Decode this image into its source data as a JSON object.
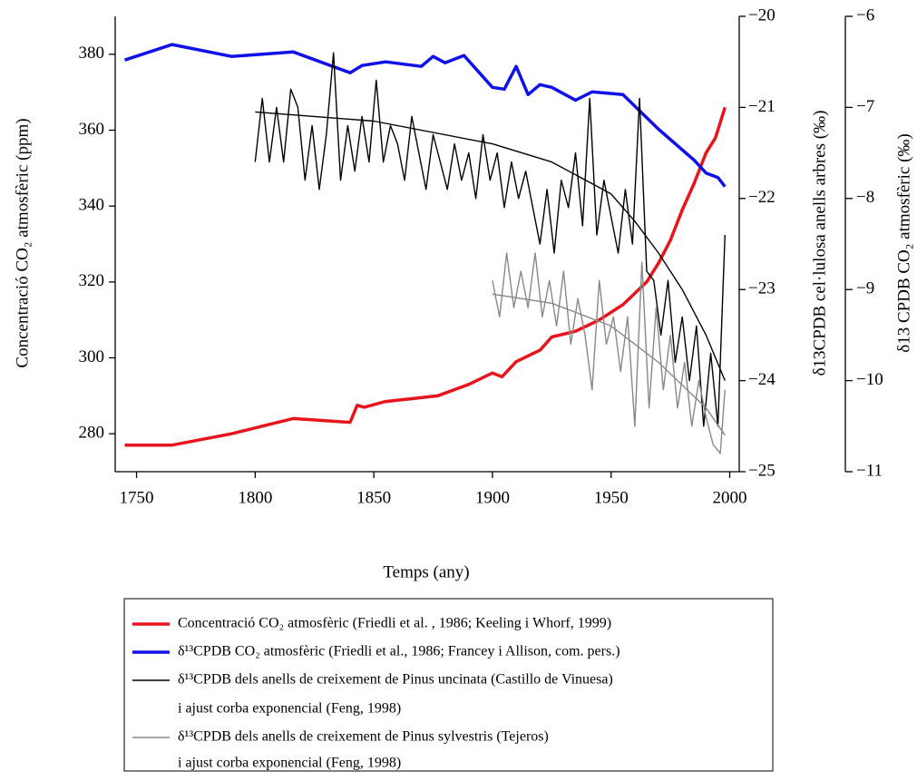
{
  "chart_data": {
    "type": "line",
    "xlabel": "Temps (any)",
    "ylabel": "Concentració CO₂  atmosfèric (ppm)",
    "y2label": "δ13CPDB cel·lulosa anells arbres (‰)",
    "y3label": "δ13 CPDB CO₂ atmosfèric (‰)",
    "xlim": [
      1741,
      2004
    ],
    "xticks": [
      1750,
      1800,
      1850,
      1900,
      1950,
      2000
    ],
    "ylim": [
      270,
      390
    ],
    "yticks": [
      280,
      300,
      320,
      340,
      360,
      380
    ],
    "y2lim": [
      -25,
      -20
    ],
    "y2ticks": [
      {
        "value": -25,
        "label": "−25"
      },
      {
        "value": -24,
        "label": "−24"
      },
      {
        "value": -23,
        "label": "−23"
      },
      {
        "value": -22,
        "label": "−22"
      },
      {
        "value": -21,
        "label": "−21"
      },
      {
        "value": -20,
        "label": "−20"
      }
    ],
    "y3lim": [
      -11,
      -6
    ],
    "y3ticks": [
      {
        "value": -11,
        "label": "−11"
      },
      {
        "value": -10,
        "label": "−10"
      },
      {
        "value": -9,
        "label": "−9"
      },
      {
        "value": -8,
        "label": "−8"
      },
      {
        "value": -7,
        "label": "−7"
      },
      {
        "value": -6,
        "label": "−6"
      }
    ],
    "legend": "bottom",
    "series": [
      {
        "name": "Concentració CO₂ atmosfèric (Friedli et al. , 1986; Keeling i Whorf, 1999)",
        "color": "#e8141b",
        "axis": "y",
        "x": [
          1745,
          1765,
          1790,
          1816,
          1840,
          1843,
          1846,
          1855,
          1870,
          1877,
          1890,
          1900,
          1904,
          1910,
          1920,
          1925,
          1935,
          1945,
          1955,
          1960,
          1965,
          1970,
          1975,
          1980,
          1985,
          1990,
          1994,
          1996,
          1998
        ],
        "values": [
          277,
          277,
          280,
          284,
          283,
          287.5,
          287,
          288.5,
          289.5,
          290,
          293,
          296,
          295,
          299,
          302,
          305.5,
          307,
          310,
          314,
          317,
          320,
          325,
          331,
          339,
          346,
          354,
          358,
          362,
          366
        ]
      },
      {
        "name": "δ¹³CPDB CO₂ atmosfèric (Friedli et al., 1986; Francey i Allison, com. pers.)",
        "color": "#1010e8",
        "axis": "y3",
        "x": [
          1745,
          1765,
          1790,
          1816,
          1840,
          1845,
          1855,
          1870,
          1875,
          1880,
          1888,
          1900,
          1905,
          1910,
          1915,
          1920,
          1925,
          1935,
          1942,
          1955,
          1970,
          1985,
          1990,
          1995,
          1998
        ],
        "values": [
          -6.48,
          -6.31,
          -6.44,
          -6.39,
          -6.62,
          -6.54,
          -6.5,
          -6.55,
          -6.44,
          -6.51,
          -6.43,
          -6.78,
          -6.8,
          -6.55,
          -6.86,
          -6.75,
          -6.78,
          -6.92,
          -6.83,
          -6.86,
          -7.24,
          -7.58,
          -7.72,
          -7.77,
          -7.87
        ]
      },
      {
        "name": "δ¹³CPDB dels anells de creixement de Pinus uncinata (Castillo de Vinuesa)",
        "color": "#000000",
        "axis": "y2",
        "x": [
          1800,
          1803,
          1806,
          1809,
          1812,
          1815,
          1818,
          1821,
          1824,
          1827,
          1830,
          1833,
          1836,
          1839,
          1842,
          1845,
          1848,
          1851,
          1854,
          1857,
          1860,
          1863,
          1866,
          1869,
          1872,
          1875,
          1878,
          1881,
          1884,
          1887,
          1890,
          1893,
          1896,
          1899,
          1902,
          1905,
          1908,
          1911,
          1914,
          1917,
          1920,
          1923,
          1926,
          1929,
          1932,
          1935,
          1938,
          1941,
          1944,
          1947,
          1950,
          1953,
          1956,
          1959,
          1962,
          1965,
          1968,
          1971,
          1974,
          1977,
          1980,
          1983,
          1986,
          1989,
          1992,
          1995,
          1998
        ],
        "values": [
          -21.6,
          -20.9,
          -21.6,
          -21.0,
          -21.6,
          -20.8,
          -21.0,
          -21.8,
          -21.2,
          -21.9,
          -21.3,
          -20.4,
          -21.8,
          -21.2,
          -21.7,
          -21.1,
          -21.6,
          -20.7,
          -21.6,
          -21.2,
          -21.4,
          -21.8,
          -21.1,
          -21.5,
          -21.9,
          -21.3,
          -21.6,
          -21.9,
          -21.4,
          -21.8,
          -21.5,
          -22.0,
          -21.3,
          -21.8,
          -21.5,
          -22.1,
          -21.6,
          -22.0,
          -21.7,
          -22.1,
          -22.5,
          -21.9,
          -22.6,
          -21.8,
          -22.1,
          -21.5,
          -22.3,
          -20.9,
          -22.4,
          -21.8,
          -22.2,
          -22.6,
          -21.9,
          -22.5,
          -20.9,
          -22.8,
          -22.9,
          -23.5,
          -22.9,
          -23.8,
          -23.3,
          -24.0,
          -23.4,
          -24.5,
          -23.7,
          -24.5,
          -22.4
        ]
      },
      {
        "name": "i ajust corba exponencial (Feng, 1998)",
        "color": "#000000",
        "axis": "y2",
        "x": [
          1800,
          1850,
          1900,
          1925,
          1950,
          1960,
          1970,
          1980,
          1990,
          1998
        ],
        "values": [
          -21.05,
          -21.15,
          -21.4,
          -21.6,
          -21.95,
          -22.25,
          -22.6,
          -23.0,
          -23.5,
          -24.0
        ]
      },
      {
        "name": "δ¹³CPDB dels anells de creixement de Pinus sylvestris (Tejeros)",
        "color": "#888888",
        "axis": "y2",
        "x": [
          1900,
          1903,
          1906,
          1909,
          1912,
          1915,
          1918,
          1921,
          1924,
          1927,
          1930,
          1933,
          1936,
          1939,
          1942,
          1945,
          1948,
          1951,
          1954,
          1957,
          1960,
          1963,
          1966,
          1969,
          1972,
          1975,
          1978,
          1981,
          1984,
          1987,
          1990,
          1993,
          1996,
          1998
        ],
        "values": [
          -22.9,
          -23.3,
          -22.6,
          -23.2,
          -22.8,
          -23.2,
          -22.6,
          -23.3,
          -22.9,
          -23.4,
          -22.8,
          -23.6,
          -23.1,
          -23.5,
          -24.1,
          -22.9,
          -23.6,
          -23.3,
          -23.9,
          -23.3,
          -24.5,
          -22.7,
          -24.3,
          -23.2,
          -24.1,
          -23.5,
          -24.3,
          -23.8,
          -24.5,
          -24.0,
          -24.4,
          -24.7,
          -24.8,
          -24.1
        ]
      },
      {
        "name": "i ajust corba exponencial (Feng, 1998)",
        "color": "#888888",
        "axis": "y2",
        "x": [
          1900,
          1925,
          1950,
          1970,
          1990,
          1998
        ],
        "values": [
          -23.05,
          -23.15,
          -23.4,
          -23.8,
          -24.3,
          -24.6
        ]
      }
    ]
  }
}
